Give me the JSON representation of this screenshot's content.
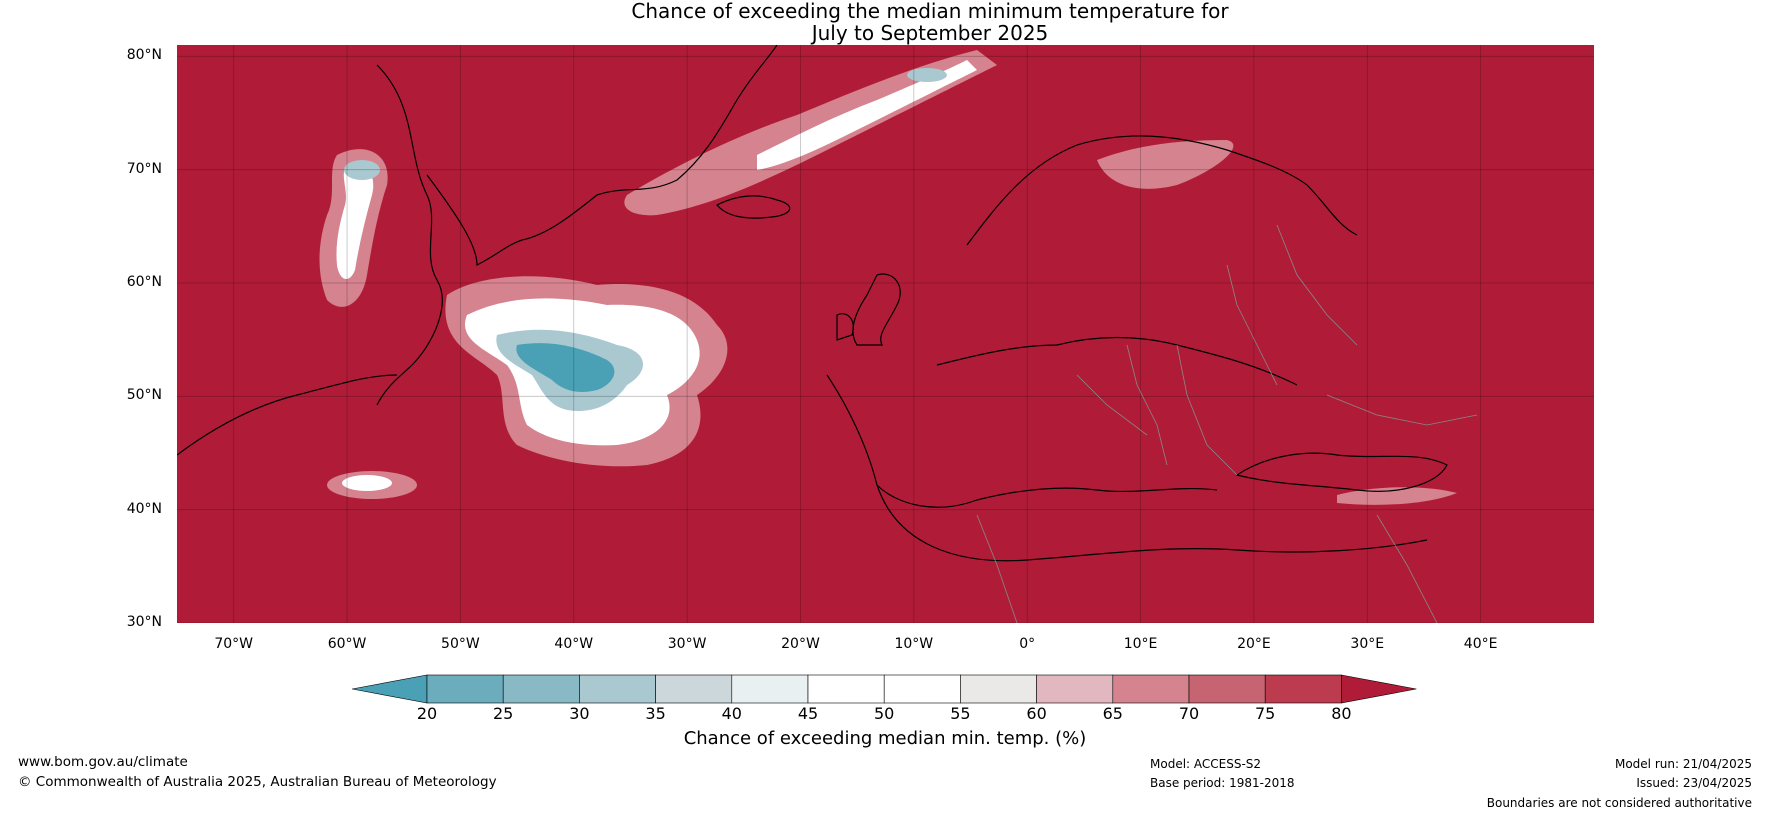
{
  "title": {
    "line1": "Chance of exceeding the median minimum temperature for",
    "line2": "July to September 2025"
  },
  "map": {
    "lon_range": [
      -75,
      50
    ],
    "lat_range": [
      30,
      81
    ],
    "background_color": "#b01c38",
    "lat_ticks": [
      {
        "value": 80,
        "label": "80°N"
      },
      {
        "value": 70,
        "label": "70°N"
      },
      {
        "value": 60,
        "label": "60°N"
      },
      {
        "value": 50,
        "label": "50°N"
      },
      {
        "value": 40,
        "label": "40°N"
      },
      {
        "value": 30,
        "label": "30°N"
      }
    ],
    "lon_ticks": [
      {
        "value": -70,
        "label": "70°W"
      },
      {
        "value": -60,
        "label": "60°W"
      },
      {
        "value": -50,
        "label": "50°W"
      },
      {
        "value": -40,
        "label": "40°W"
      },
      {
        "value": -30,
        "label": "30°W"
      },
      {
        "value": -20,
        "label": "20°W"
      },
      {
        "value": -10,
        "label": "10°W"
      },
      {
        "value": 0,
        "label": "0°"
      },
      {
        "value": 10,
        "label": "10°E"
      },
      {
        "value": 20,
        "label": "20°E"
      },
      {
        "value": 30,
        "label": "30°E"
      },
      {
        "value": 40,
        "label": "40°E"
      }
    ]
  },
  "colorbar": {
    "label": "Chance of exceeding median min. temp. (%)",
    "ticks": [
      "20",
      "25",
      "30",
      "35",
      "40",
      "45",
      "50",
      "55",
      "60",
      "65",
      "70",
      "75",
      "80"
    ],
    "colors": [
      "#4aa0b5",
      "#6badbd",
      "#8ab9c6",
      "#a9c8d0",
      "#ccd7db",
      "#e9f0f1",
      "#ffffff",
      "#ffffff",
      "#ebe8e8",
      "#e2b7bf",
      "#d4838f",
      "#c66571",
      "#bd3b4f",
      "#b01c38"
    ]
  },
  "footer": {
    "website": "www.bom.gov.au/climate",
    "copyright": "© Commonwealth of Australia 2025, Australian Bureau of Meteorology",
    "model": "Model: ACCESS-S2",
    "base_period": "Base period: 1981-2018",
    "model_run": "Model run: 21/04/2025",
    "issued": "Issued: 23/04/2025",
    "disclaimer": "Boundaries are not considered authoritative"
  }
}
